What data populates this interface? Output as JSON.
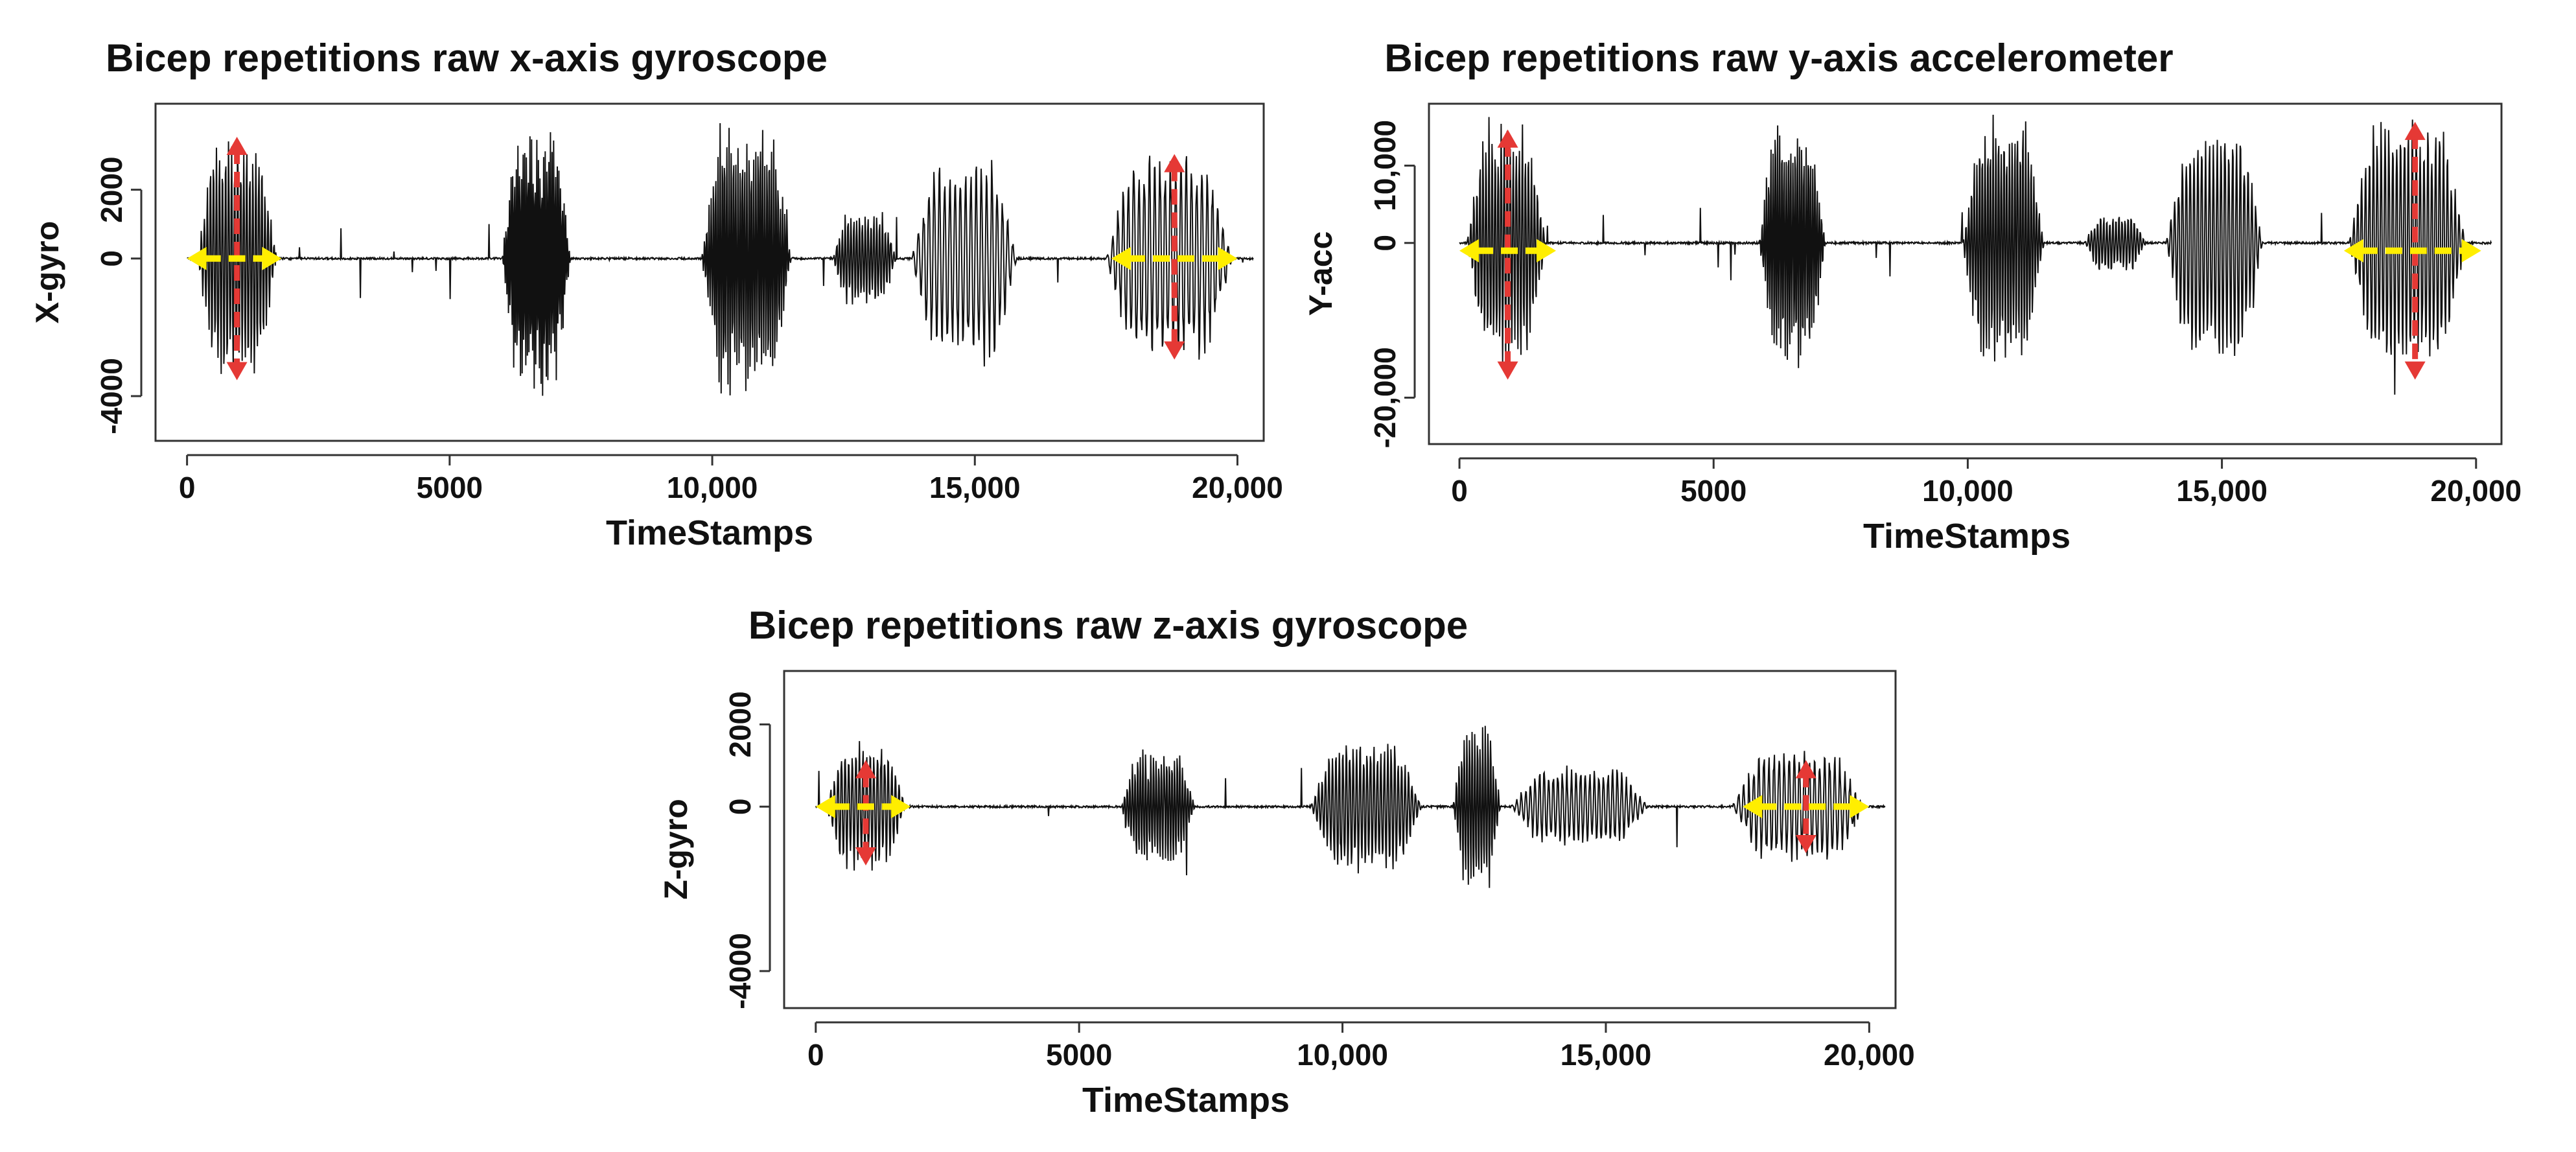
{
  "colors": {
    "signal": "#111111",
    "vertical_arrow": "#e53935",
    "horizontal_arrow": "#ffee00",
    "frame": "#333333"
  },
  "chart_data": [
    {
      "type": "line",
      "title": "Bicep repetitions raw x-axis gyroscope",
      "xlabel": "TimeStamps",
      "ylabel": "X-gyro",
      "xlim": [
        -600,
        20500
      ],
      "ylim": [
        -5300,
        4500
      ],
      "xticks": [
        0,
        5000,
        10000,
        15000,
        20000
      ],
      "xtick_labels": [
        "0",
        "5000",
        "10,000",
        "15,000",
        "20,000"
      ],
      "yticks": [
        -4000,
        0,
        2000
      ],
      "ytick_labels": [
        "-4000",
        "0",
        "2000"
      ],
      "bursts": [
        {
          "start": 200,
          "end": 1700,
          "amplitude": 3600,
          "cycles": 26
        },
        {
          "start": 6000,
          "end": 7300,
          "amplitude": 4300,
          "cycles": 40
        },
        {
          "start": 9800,
          "end": 11500,
          "amplitude": 4200,
          "cycles": 40
        },
        {
          "start": 12300,
          "end": 13500,
          "amplitude": 1500,
          "cycles": 22
        },
        {
          "start": 13800,
          "end": 15800,
          "amplitude": 3100,
          "cycles": 20
        },
        {
          "start": 17500,
          "end": 19900,
          "amplitude": 3200,
          "cycles": 24
        }
      ],
      "arrows": [
        {
          "center": 950,
          "value": 0,
          "vertical": [
            -3500,
            3500
          ],
          "horizontal": [
            0,
            1800
          ]
        },
        {
          "center": 18800,
          "value": 0,
          "vertical": [
            -2900,
            3000
          ],
          "horizontal": [
            17600,
            20000
          ]
        }
      ]
    },
    {
      "type": "line",
      "title": "Bicep repetitions raw y-axis accelerometer",
      "xlabel": "TimeStamps",
      "ylabel": "Y-acc",
      "xlim": [
        -600,
        20500
      ],
      "ylim": [
        -26000,
        18000
      ],
      "xticks": [
        0,
        5000,
        10000,
        15000,
        20000
      ],
      "xtick_labels": [
        "0",
        "5000",
        "10,000",
        "15,000",
        "20,000"
      ],
      "yticks": [
        -20000,
        0,
        10000
      ],
      "ytick_labels": [
        "-20,000",
        "0",
        "10,000"
      ],
      "bursts": [
        {
          "start": 150,
          "end": 1700,
          "amplitude": 16000,
          "cycles": 26
        },
        {
          "start": 5900,
          "end": 7200,
          "amplitude": 17000,
          "cycles": 30
        },
        {
          "start": 9900,
          "end": 11500,
          "amplitude": 17000,
          "cycles": 30
        },
        {
          "start": 12300,
          "end": 13500,
          "amplitude": 4000,
          "cycles": 20
        },
        {
          "start": 13900,
          "end": 15800,
          "amplitude": 16000,
          "cycles": 25
        },
        {
          "start": 17500,
          "end": 19800,
          "amplitude": 17000,
          "cycles": 30
        }
      ],
      "arrows": [
        {
          "center": 950,
          "value": -1000,
          "vertical": [
            -17500,
            14500
          ],
          "horizontal": [
            0,
            1900
          ]
        },
        {
          "center": 18800,
          "value": -1000,
          "vertical": [
            -17500,
            15500
          ],
          "horizontal": [
            17400,
            20100
          ]
        }
      ]
    },
    {
      "type": "line",
      "title": "Bicep repetitions raw z-axis gyroscope",
      "xlabel": "TimeStamps",
      "ylabel": "Z-gyro",
      "xlim": [
        -600,
        20500
      ],
      "ylim": [
        -4900,
        3300
      ],
      "xticks": [
        0,
        5000,
        10000,
        15000,
        20000
      ],
      "xtick_labels": [
        "0",
        "5000",
        "10,000",
        "15,000",
        "20,000"
      ],
      "yticks": [
        -4000,
        0,
        2000
      ],
      "ytick_labels": [
        "-4000",
        "0",
        "2000"
      ],
      "bursts": [
        {
          "start": 200,
          "end": 1700,
          "amplitude": 1600,
          "cycles": 22
        },
        {
          "start": 5800,
          "end": 7200,
          "amplitude": 1500,
          "cycles": 28
        },
        {
          "start": 9400,
          "end": 11500,
          "amplitude": 1700,
          "cycles": 32
        },
        {
          "start": 12100,
          "end": 13000,
          "amplitude": 2100,
          "cycles": 18
        },
        {
          "start": 13200,
          "end": 15800,
          "amplitude": 1000,
          "cycles": 30
        },
        {
          "start": 17400,
          "end": 19900,
          "amplitude": 1400,
          "cycles": 26
        }
      ],
      "arrows": [
        {
          "center": 950,
          "value": 0,
          "vertical": [
            -1400,
            1100
          ],
          "horizontal": [
            0,
            1800
          ]
        },
        {
          "center": 18800,
          "value": 0,
          "vertical": [
            -1100,
            1100
          ],
          "horizontal": [
            17600,
            20000
          ]
        }
      ]
    }
  ]
}
